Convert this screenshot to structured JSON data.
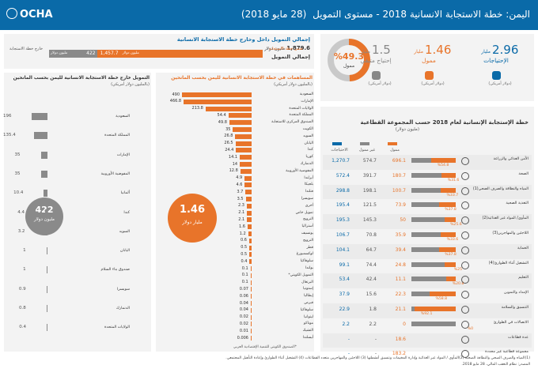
{
  "header": {
    "logo": "OCHA",
    "title": "اليمن: خطة الاستجابة الانسانية 2018 - مستوى التمويل",
    "date": "(28 مايو 2018)"
  },
  "kpis": [
    {
      "value": "2.96",
      "unit": "مليار",
      "label": "الإحتياجات",
      "caption": "(دولار أمريكي)",
      "color": "#0a6aa8"
    },
    {
      "value": "1.46",
      "unit": "مليار",
      "label": "ممول",
      "caption": "(دولار أمريكي)",
      "color": "#e8742a"
    },
    {
      "value": "1.5",
      "unit": "مليار",
      "label": "إحتياج متبقي",
      "caption": "(دولار أمريكي)",
      "color": "#888888"
    }
  ],
  "donut": {
    "percent": "%49.3",
    "label": "ممول",
    "fraction": 0.493
  },
  "funding_in_out": {
    "title": "إجمالي التمويل داخل وخارج خطة الاستجابة الانسانية",
    "total_label": "إجمالي التمويل",
    "total_value": "1,879.6",
    "total_unit": "مليون دولار",
    "inside_label": "ضمن خطة الاستجابة",
    "inside_value": "1,457.7",
    "inside_unit": "مليون دولار",
    "outside_label": "خارج خطة الاستجابة",
    "outside_value": "422",
    "outside_unit": "مليون دولار"
  },
  "outside_donors": {
    "title": "التمويل خارج خطة الاستجابة الانسانية لليمن بحسب المانحين",
    "subtitle": "(بالمليون دولار أمريكي)",
    "total_value": "422",
    "total_unit": "مليون دولار",
    "rows": [
      {
        "name": "السعودية",
        "value": 196
      },
      {
        "name": "المملكة المتحدة",
        "value": 135.4
      },
      {
        "name": "الإمارات",
        "value": 35
      },
      {
        "name": "المفوضية الأوروبية",
        "value": 35
      },
      {
        "name": "ألمانيا",
        "value": 10.4
      },
      {
        "name": "كندا",
        "value": 4.4
      },
      {
        "name": "السويد",
        "value": 3.2
      },
      {
        "name": "اليابان",
        "value": 1
      },
      {
        "name": "صندوق بناء السلام",
        "value": 1
      },
      {
        "name": "سويسرا",
        "value": 0.9
      },
      {
        "name": "الدنمارك",
        "value": 0.8
      },
      {
        "name": "الولايات المتحدة",
        "value": 0.4
      }
    ]
  },
  "hrp_donors": {
    "title": "المساهمات في خطة الاستجابة الانسانية لليمن بحسب المانحين",
    "subtitle": "(بالمليون دولار أمريكي)",
    "total_value": "1.46",
    "total_unit": "مليار دولار",
    "footnote": "*الصندوق الكويتي للتنمية الإقتصادية العربي",
    "rows": [
      {
        "name": "السعودية",
        "value": 490,
        "label": "490"
      },
      {
        "name": "الإمارات",
        "value": 466.8,
        "label": "466.8"
      },
      {
        "name": "الولايات المتحدة",
        "value": 213.8,
        "label": "213.8"
      },
      {
        "name": "المملكة المتحدة",
        "value": 54.4,
        "label": "54.4"
      },
      {
        "name": "الصندوق المركزي للاستجابة",
        "value": 49.8,
        "label": "49.8"
      },
      {
        "name": "الكويت",
        "value": 35,
        "label": "35"
      },
      {
        "name": "السويد",
        "value": 26.8,
        "label": "26.8"
      },
      {
        "name": "اليابان",
        "value": 26.5,
        "label": "26.5"
      },
      {
        "name": "كندا",
        "value": 24.4,
        "label": "24.4"
      },
      {
        "name": "كوريا",
        "value": 14.1,
        "label": "14.1"
      },
      {
        "name": "الدنمارك",
        "value": 14,
        "label": "14"
      },
      {
        "name": "المفوضية الأوروبية",
        "value": 12.8,
        "label": "12.8"
      },
      {
        "name": "أيرلندا",
        "value": 4.9,
        "label": "4.9"
      },
      {
        "name": "بلجيكا",
        "value": 4.6,
        "label": "4.6"
      },
      {
        "name": "فنلندا",
        "value": 3.7,
        "label": "3.7"
      },
      {
        "name": "سويسرا",
        "value": 3.5,
        "label": "3.5"
      },
      {
        "name": "أخرى",
        "value": 2.3,
        "label": "2.3"
      },
      {
        "name": "تمويل خاص",
        "value": 2.1,
        "label": "2.1"
      },
      {
        "name": "النرويج",
        "value": 2.1,
        "label": "2.1"
      },
      {
        "name": "أستراليا",
        "value": 1.6,
        "label": "1.6"
      },
      {
        "name": "يونسيف",
        "value": 1.2,
        "label": "1.2"
      },
      {
        "name": "النرويج",
        "value": 0.6,
        "label": "0.6"
      },
      {
        "name": "قطر",
        "value": 0.5,
        "label": "0.5"
      },
      {
        "name": "لوكسمبورغ",
        "value": 0.5,
        "label": "0.5"
      },
      {
        "name": "سلوفاكيا",
        "value": 0.4,
        "label": "0.4"
      },
      {
        "name": "بولندا",
        "value": 0.1,
        "label": "0.1"
      },
      {
        "name": "التمويل الكويتي*",
        "value": 0.1,
        "label": "0.1"
      },
      {
        "name": "البرتغال",
        "value": 0.1,
        "label": "0.1"
      },
      {
        "name": "إستونيا",
        "value": 0.07,
        "label": "0.07"
      },
      {
        "name": "إيطاليا",
        "value": 0.06,
        "label": "0.06"
      },
      {
        "name": "قبرص",
        "value": 0.04,
        "label": "0.04"
      },
      {
        "name": "سلوفاكيا",
        "value": 0.04,
        "label": "0.04"
      },
      {
        "name": "ليتوانيا",
        "value": 0.02,
        "label": "0.02"
      },
      {
        "name": "موناكو",
        "value": 0.02,
        "label": "0.02"
      },
      {
        "name": "التشيك",
        "value": 0.01,
        "label": "0.01"
      },
      {
        "name": "أيسلندا",
        "value": 0.006,
        "label": "0.006"
      }
    ]
  },
  "clusters": {
    "title": "خطة الإستجابة الإنسانية لعام 2018 حسب المجموعة القطاعية",
    "subtitle": "(مليون دولار)",
    "col_funded": "ممول",
    "col_unfunded": "غير ممول",
    "col_requirements": "الاحتياجات",
    "colors": {
      "funded": "#e8742a",
      "unfunded": "#888888",
      "requirements": "#0a6aa8"
    },
    "rows": [
      {
        "name": "الأمن الغذائي والزراعة",
        "req": "1,270.7",
        "unfunded": "574.7",
        "funded": "696.1",
        "pct": "%54.8",
        "frac": 0.548
      },
      {
        "name": "الصحة",
        "req": "572.4",
        "unfunded": "391.7",
        "funded": "180.7",
        "pct": "%31.6",
        "frac": 0.316
      },
      {
        "name": "المياه والنظافة والصرف الصحي(1)",
        "req": "298.8",
        "unfunded": "198.1",
        "funded": "100.7",
        "pct": "%33.7",
        "frac": 0.337
      },
      {
        "name": "التغذية الصحية",
        "req": "195.4",
        "unfunded": "121.5",
        "funded": "73.9",
        "pct": "%37.8",
        "frac": 0.378
      },
      {
        "name": "المأوى/ المواد غير الغذائية(2)",
        "req": "195.3",
        "unfunded": "145.3",
        "funded": "50",
        "pct": "%25.6",
        "frac": 0.256
      },
      {
        "name": "اللاجئين والمهاجرين(3)",
        "req": "106.7",
        "unfunded": "70.8",
        "funded": "35.9",
        "pct": "%33.6",
        "frac": 0.336
      },
      {
        "name": "الحماية",
        "req": "104.1",
        "unfunded": "64.7",
        "funded": "39.4",
        "pct": "%37.8",
        "frac": 0.378
      },
      {
        "name": "التشغيل أثناء الطوارئ(4)",
        "req": "99.1",
        "unfunded": "74.4",
        "funded": "24.8",
        "pct": "%25",
        "frac": 0.25
      },
      {
        "name": "التعليم",
        "req": "53.4",
        "unfunded": "42.4",
        "funded": "11.1",
        "pct": "%20.8",
        "frac": 0.208
      },
      {
        "name": "الإمداد والتموين",
        "req": "37.9",
        "unfunded": "15.6",
        "funded": "22.3",
        "pct": "%58.8",
        "frac": 0.588
      },
      {
        "name": "التنسيق والسلامة",
        "req": "22.9",
        "unfunded": "1.8",
        "funded": "21.1",
        "pct": "%92.1",
        "frac": 0.921
      },
      {
        "name": "الاتصالات في الطوارئ",
        "req": "2.2",
        "unfunded": "2.2",
        "funded": "0",
        "pct": "%0",
        "frac": 0
      },
      {
        "name": "عدة قطاعات",
        "req": "-",
        "unfunded": "-",
        "funded": "18.6",
        "pct": "",
        "frac": 0
      },
      {
        "name": "مجموعة قطاعية غير محددة",
        "req": "-",
        "unfunded": "-",
        "funded": "183.2",
        "pct": "",
        "frac": 0
      }
    ]
  },
  "footer": {
    "line1": "(1)المياه والصرف الصحي والنظافة الصحية (2)المأوى / المواد غير الغذائية وإدارة المخيمات وتنسيق أنشطتها (3) اللاجئين والمهاجرين متعدد القطاعات (4) التشغيل أثناء الطوارئ وإعادة التأهيل المجتمعي.",
    "line2": "المصدر: نظام التعقب المالي، 28 مايو 2018."
  }
}
